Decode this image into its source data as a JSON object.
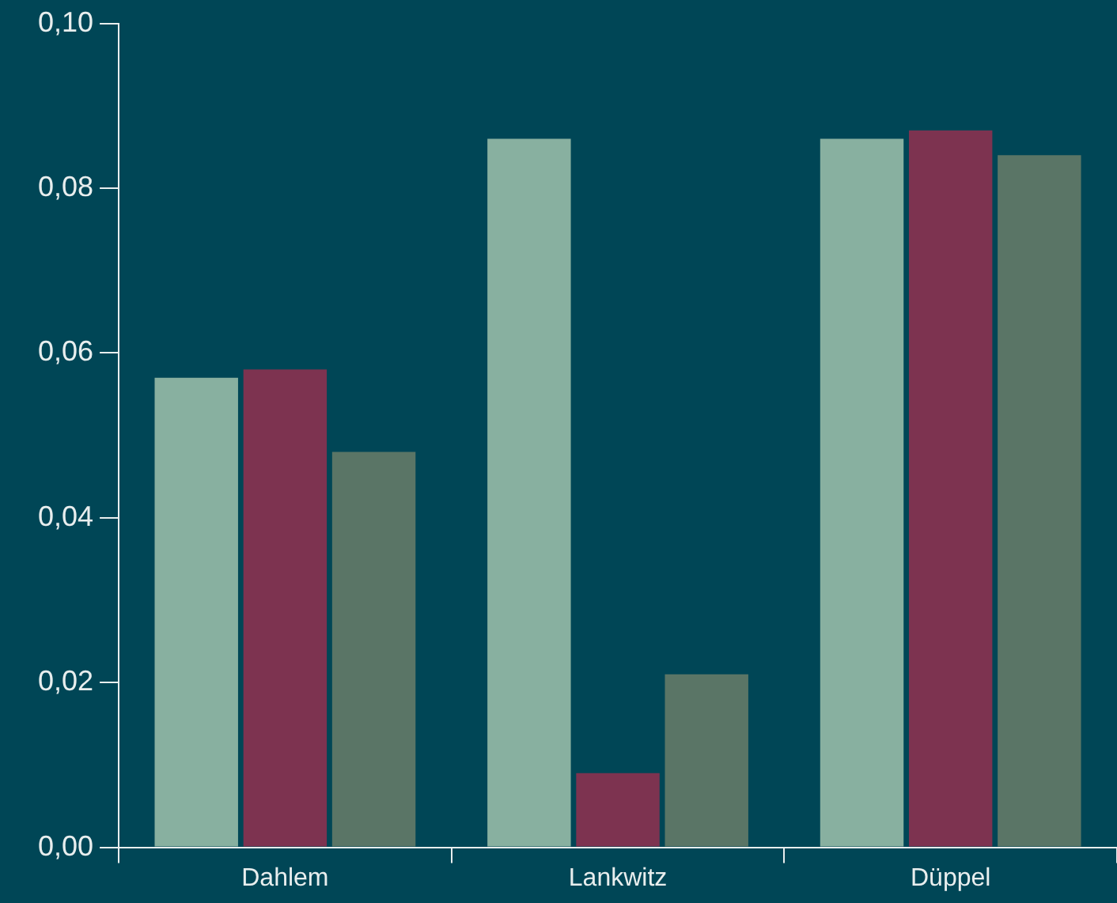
{
  "chart_data": {
    "type": "bar",
    "categories": [
      "Dahlem",
      "Lankwitz",
      "Düppel"
    ],
    "series": [
      {
        "color": "#88b0a0",
        "values": [
          0.057,
          0.086,
          0.086
        ]
      },
      {
        "color": "#7d3350",
        "values": [
          0.058,
          0.009,
          0.087
        ]
      },
      {
        "color": "#5a7566",
        "values": [
          0.048,
          0.021,
          0.084
        ]
      }
    ],
    "ylim": [
      0,
      0.1
    ],
    "yticks": [
      {
        "value": 0,
        "label": "0,00"
      },
      {
        "value": 0.02,
        "label": "0,02"
      },
      {
        "value": 0.04,
        "label": "0,04"
      },
      {
        "value": 0.06,
        "label": "0,06"
      },
      {
        "value": 0.08,
        "label": "0,08"
      },
      {
        "value": 0.1,
        "label": "0,10"
      }
    ],
    "grid": false,
    "legend": false
  }
}
